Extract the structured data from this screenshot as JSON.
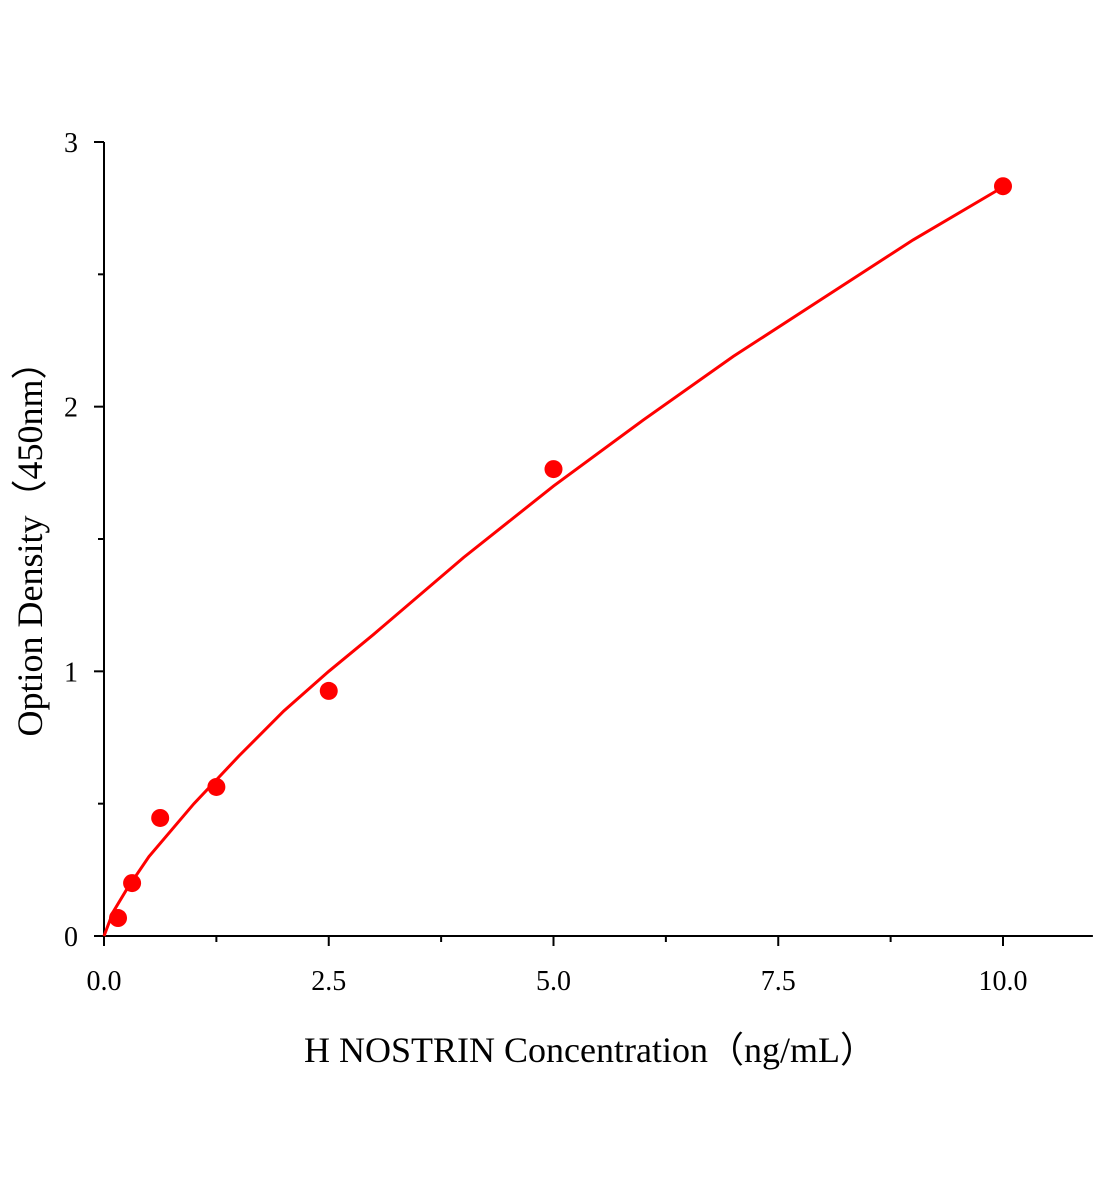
{
  "chart_data": {
    "type": "scatter",
    "title": "",
    "xlabel": "H NOSTRIN Concentration（ng/mL）",
    "ylabel": "Option Density（450nm）",
    "xlim": [
      0,
      11
    ],
    "ylim": [
      0,
      3
    ],
    "x_ticks": [
      "0.0",
      "2.5",
      "5.0",
      "7.5",
      "10.0"
    ],
    "x_tick_values": [
      0,
      2.5,
      5,
      7.5,
      10
    ],
    "y_ticks": [
      "0",
      "1",
      "2",
      "3"
    ],
    "y_tick_values": [
      0,
      1,
      2,
      3
    ],
    "grid": false,
    "legend": "none",
    "color": "#ff0000",
    "series": [
      {
        "x": [
          0.156,
          0.3125,
          0.625,
          1.25,
          2.5,
          5,
          10
        ],
        "y": [
          0.068,
          0.2,
          0.446,
          0.563,
          0.926,
          1.764,
          2.833
        ]
      }
    ],
    "fit_curve": {
      "x": [
        0,
        0.1,
        0.25,
        0.5,
        1,
        1.5,
        2,
        2.5,
        3,
        4,
        5,
        6,
        7,
        8,
        9,
        10
      ],
      "y": [
        0,
        0.09,
        0.175,
        0.3,
        0.5,
        0.68,
        0.85,
        1.0,
        1.14,
        1.43,
        1.7,
        1.95,
        2.19,
        2.41,
        2.63,
        2.83
      ]
    }
  }
}
